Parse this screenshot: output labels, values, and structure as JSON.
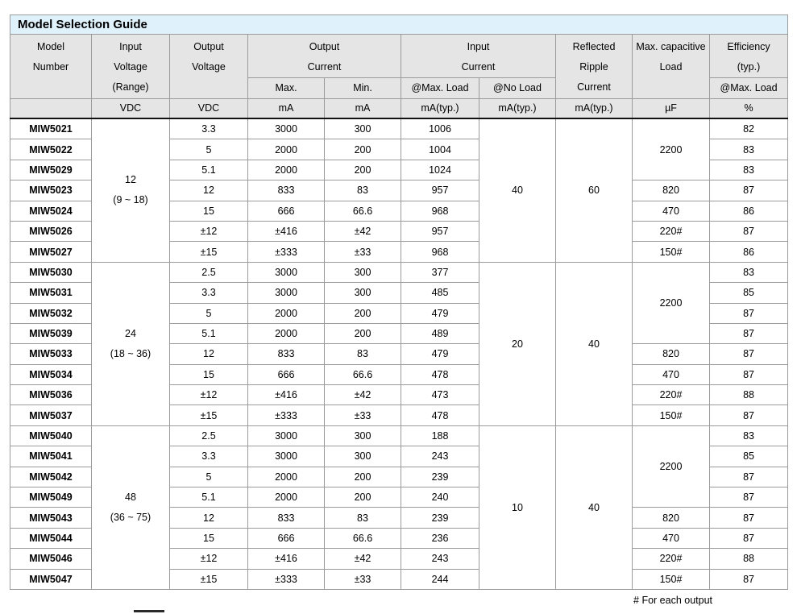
{
  "title": "Model Selection Guide",
  "colors": {
    "title_bar_bg": "#dff2fb",
    "header_bg": "#e5e5e5",
    "grid_line": "#9b9b9b"
  },
  "header": {
    "model": [
      "Model",
      "Number"
    ],
    "input_voltage": [
      "Input",
      "Voltage",
      "(Range)"
    ],
    "output_voltage": [
      "Output",
      "Voltage"
    ],
    "output_current": [
      "Output",
      "Current"
    ],
    "output_current_sub": [
      "Max.",
      "Min."
    ],
    "input_current": [
      "Input",
      "Current"
    ],
    "input_current_sub": [
      "@Max. Load",
      "@No Load"
    ],
    "reflected_ripple": [
      "Reflected",
      "Ripple",
      "Current"
    ],
    "max_capacitive": [
      "Max. capacitive",
      "Load"
    ],
    "efficiency": [
      "Efficiency",
      "(typ.)"
    ],
    "efficiency_sub": "@Max. Load",
    "units": [
      "",
      "VDC",
      "VDC",
      "mA",
      "mA",
      "mA(typ.)",
      "mA(typ.)",
      "mA(typ.)",
      "µF",
      "%"
    ]
  },
  "blocks": [
    {
      "input_voltage": "12",
      "input_range": "(9 ~ 18)",
      "no_load": "40",
      "ripple": "60",
      "rows": [
        {
          "model": "MIW5021",
          "vout": "3.3",
          "imax": "3000",
          "imin": "300",
          "iin": "1006",
          "cap": "2200",
          "cap_span": 3,
          "eff": "82"
        },
        {
          "model": "MIW5022",
          "vout": "5",
          "imax": "2000",
          "imin": "200",
          "iin": "1004",
          "eff": "83"
        },
        {
          "model": "MIW5029",
          "vout": "5.1",
          "imax": "2000",
          "imin": "200",
          "iin": "1024",
          "eff": "83"
        },
        {
          "model": "MIW5023",
          "vout": "12",
          "imax": "833",
          "imin": "83",
          "iin": "957",
          "cap": "820",
          "cap_span": 1,
          "eff": "87"
        },
        {
          "model": "MIW5024",
          "vout": "15",
          "imax": "666",
          "imin": "66.6",
          "iin": "968",
          "cap": "470",
          "cap_span": 1,
          "eff": "86"
        },
        {
          "model": "MIW5026",
          "vout": "±12",
          "imax": "±416",
          "imin": "±42",
          "iin": "957",
          "cap": "220#",
          "cap_span": 1,
          "eff": "87"
        },
        {
          "model": "MIW5027",
          "vout": "±15",
          "imax": "±333",
          "imin": "±33",
          "iin": "968",
          "cap": "150#",
          "cap_span": 1,
          "eff": "86"
        }
      ]
    },
    {
      "input_voltage": "24",
      "input_range": "(18 ~ 36)",
      "no_load": "20",
      "ripple": "40",
      "rows": [
        {
          "model": "MIW5030",
          "vout": "2.5",
          "imax": "3000",
          "imin": "300",
          "iin": "377",
          "cap": "2200",
          "cap_span": 4,
          "eff": "83"
        },
        {
          "model": "MIW5031",
          "vout": "3.3",
          "imax": "3000",
          "imin": "300",
          "iin": "485",
          "eff": "85"
        },
        {
          "model": "MIW5032",
          "vout": "5",
          "imax": "2000",
          "imin": "200",
          "iin": "479",
          "eff": "87"
        },
        {
          "model": "MIW5039",
          "vout": "5.1",
          "imax": "2000",
          "imin": "200",
          "iin": "489",
          "eff": "87"
        },
        {
          "model": "MIW5033",
          "vout": "12",
          "imax": "833",
          "imin": "83",
          "iin": "479",
          "cap": "820",
          "cap_span": 1,
          "eff": "87"
        },
        {
          "model": "MIW5034",
          "vout": "15",
          "imax": "666",
          "imin": "66.6",
          "iin": "478",
          "cap": "470",
          "cap_span": 1,
          "eff": "87"
        },
        {
          "model": "MIW5036",
          "vout": "±12",
          "imax": "±416",
          "imin": "±42",
          "iin": "473",
          "cap": "220#",
          "cap_span": 1,
          "eff": "88"
        },
        {
          "model": "MIW5037",
          "vout": "±15",
          "imax": "±333",
          "imin": "±33",
          "iin": "478",
          "cap": "150#",
          "cap_span": 1,
          "eff": "87"
        }
      ]
    },
    {
      "input_voltage": "48",
      "input_range": "(36 ~ 75)",
      "no_load": "10",
      "ripple": "40",
      "rows": [
        {
          "model": "MIW5040",
          "vout": "2.5",
          "imax": "3000",
          "imin": "300",
          "iin": "188",
          "cap": "2200",
          "cap_span": 4,
          "eff": "83"
        },
        {
          "model": "MIW5041",
          "vout": "3.3",
          "imax": "3000",
          "imin": "300",
          "iin": "243",
          "eff": "85"
        },
        {
          "model": "MIW5042",
          "vout": "5",
          "imax": "2000",
          "imin": "200",
          "iin": "239",
          "eff": "87"
        },
        {
          "model": "MIW5049",
          "vout": "5.1",
          "imax": "2000",
          "imin": "200",
          "iin": "240",
          "eff": "87"
        },
        {
          "model": "MIW5043",
          "vout": "12",
          "imax": "833",
          "imin": "83",
          "iin": "239",
          "cap": "820",
          "cap_span": 1,
          "eff": "87"
        },
        {
          "model": "MIW5044",
          "vout": "15",
          "imax": "666",
          "imin": "66.6",
          "iin": "236",
          "cap": "470",
          "cap_span": 1,
          "eff": "87"
        },
        {
          "model": "MIW5046",
          "vout": "±12",
          "imax": "±416",
          "imin": "±42",
          "iin": "243",
          "cap": "220#",
          "cap_span": 1,
          "eff": "88"
        },
        {
          "model": "MIW5047",
          "vout": "±15",
          "imax": "±333",
          "imin": "±33",
          "iin": "244",
          "cap": "150#",
          "cap_span": 1,
          "eff": "87"
        }
      ]
    }
  ],
  "footnote": "# For each output"
}
